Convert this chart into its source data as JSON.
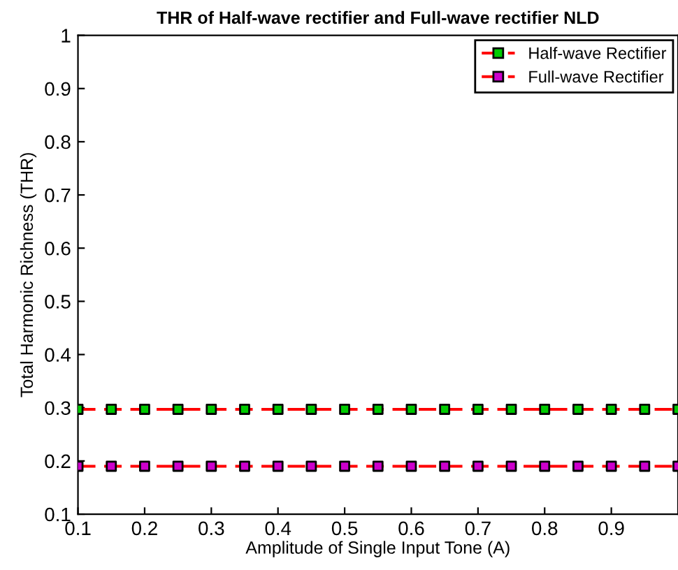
{
  "chart_data": {
    "type": "line",
    "title": "THR of Half-wave rectifier and Full-wave rectifier NLD",
    "xlabel": "Amplitude of Single Input Tone (A)",
    "ylabel": "Total Harmonic Richness (THR)",
    "x": [
      0.1,
      0.15,
      0.2,
      0.25,
      0.3,
      0.35,
      0.4,
      0.45,
      0.5,
      0.55,
      0.6,
      0.65,
      0.7,
      0.75,
      0.8,
      0.85,
      0.9,
      0.95,
      1.0
    ],
    "series": [
      {
        "name": "Half-wave Rectifier",
        "color": "#ff0000",
        "colors": [
          "#00cc00",
          "#00cc00",
          "#00cc00",
          "#00cc00",
          "#00cc00",
          "#00cc00",
          "#00cc00",
          "#00cc00",
          "#00cc00",
          "#00cc00",
          "#00cc00",
          "#00cc00",
          "#00cc00",
          "#00cc00",
          "#00cc00",
          "#00cc00",
          "#00cc00",
          "#00cc00",
          "#00cc00"
        ],
        "values": [
          0.297,
          0.297,
          0.297,
          0.297,
          0.297,
          0.297,
          0.297,
          0.297,
          0.297,
          0.297,
          0.297,
          0.297,
          0.297,
          0.297,
          0.297,
          0.297,
          0.297,
          0.297,
          0.297
        ]
      },
      {
        "name": "Full-wave Rectifier",
        "color": "#ff0000",
        "colors": [
          "#cc00cc",
          "#cc00cc",
          "#cc00cc",
          "#cc00cc",
          "#cc00cc",
          "#cc00cc",
          "#cc00cc",
          "#cc00cc",
          "#cc00cc",
          "#cc00cc",
          "#cc00cc",
          "#cc00cc",
          "#cc00cc",
          "#cc00cc",
          "#cc00cc",
          "#cc00cc",
          "#cc00cc",
          "#cc00cc",
          "#cc00cc"
        ],
        "values": [
          0.19,
          0.19,
          0.19,
          0.19,
          0.19,
          0.19,
          0.19,
          0.19,
          0.19,
          0.19,
          0.19,
          0.19,
          0.19,
          0.19,
          0.19,
          0.19,
          0.19,
          0.19,
          0.19
        ]
      }
    ],
    "xlim": [
      0.1,
      1
    ],
    "xticks": [
      0.1,
      0.2,
      0.3,
      0.4,
      0.5,
      0.6,
      0.7,
      0.8,
      0.9
    ],
    "ylim": [
      0.1,
      1
    ],
    "yticks": [
      0.1,
      0.2,
      0.3,
      0.4,
      0.5,
      0.6,
      0.7,
      0.8,
      0.9,
      1
    ],
    "marker": "square",
    "line_style": "dashed",
    "legend": "top right",
    "grid": false
  }
}
